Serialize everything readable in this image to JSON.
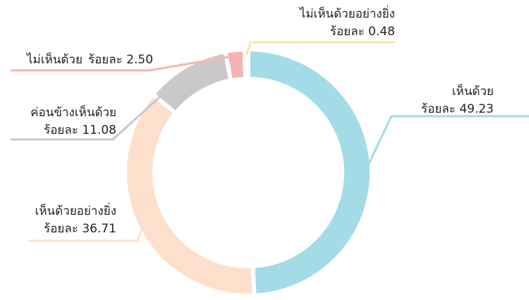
{
  "chart_data": {
    "type": "donut",
    "categories": [
      "เห็นด้วย",
      "เห็นด้วยอย่างยิ่ง",
      "ค่อนข้างเห็นด้วย",
      "ไม่เห็นด้วย",
      "ไม่เห็นด้วยอย่างยิ่ง"
    ],
    "values": [
      49.23,
      36.71,
      11.08,
      2.5,
      0.48
    ],
    "value_labels": [
      "ร้อยละ 49.23",
      "ร้อยละ 36.71",
      "ร้อยละ 11.08",
      "ร้อยละ 2.50",
      "ร้อยละ 0.48"
    ],
    "colors": [
      "#a3dbe6",
      "#fde0cc",
      "#c9c9c9",
      "#f6b3b3",
      "#fde6a3"
    ]
  }
}
